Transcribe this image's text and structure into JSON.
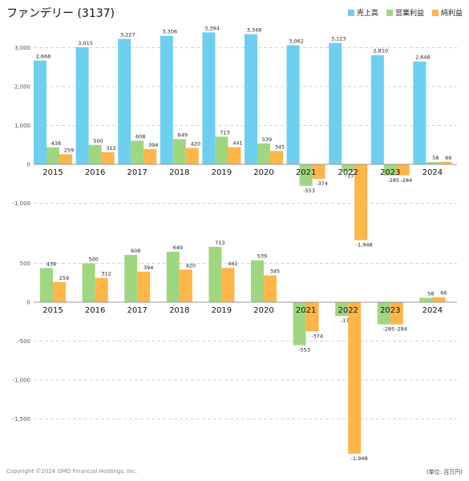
{
  "title": "ファンデリー (3137)",
  "legend": [
    {
      "name": "売上高",
      "color": "#6dcff0"
    },
    {
      "name": "営業利益",
      "color": "#9fd680"
    },
    {
      "name": "純利益",
      "color": "#ffb547"
    }
  ],
  "footer": {
    "copyright": "Copyright ©2024 GMO Financial Holdings, Inc.",
    "unit": "(単位: 百万円)"
  },
  "chart_data": [
    {
      "type": "bar",
      "categories": [
        "2015",
        "2016",
        "2017",
        "2018",
        "2019",
        "2020",
        "2021",
        "2022",
        "2023",
        "2024"
      ],
      "series": [
        {
          "name": "売上高",
          "color": "#6dcff0",
          "values": [
            2668,
            3015,
            3227,
            3306,
            3394,
            3348,
            3062,
            3123,
            2810,
            2646
          ],
          "labels": [
            "2,668",
            "3,015",
            "3,227",
            "3,306",
            "3,394",
            "3,348",
            "3,062",
            "3,123",
            "2,810",
            "2,646"
          ]
        },
        {
          "name": "営業利益",
          "color": "#9fd680",
          "values": [
            438,
            500,
            608,
            649,
            713,
            539,
            -553,
            -177,
            -285,
            58
          ],
          "labels": [
            "438",
            "500",
            "608",
            "649",
            "713",
            "539",
            "-553",
            "-177",
            "-285",
            "58"
          ]
        },
        {
          "name": "純利益",
          "color": "#ffb547",
          "values": [
            259,
            312,
            394,
            420,
            441,
            345,
            -374,
            -1948,
            -284,
            66
          ],
          "labels": [
            "259",
            "312",
            "394",
            "420",
            "441",
            "345",
            "-374",
            "-1,948",
            "-284",
            "66"
          ]
        }
      ],
      "ylim": [
        -2000,
        3500
      ],
      "yticks": [
        -1000,
        0,
        1000,
        2000,
        3000
      ],
      "ytick_labels": [
        "-1,000",
        "0",
        "1,000",
        "2,000",
        "3,000"
      ],
      "grid": true
    },
    {
      "type": "bar",
      "categories": [
        "2015",
        "2016",
        "2017",
        "2018",
        "2019",
        "2020",
        "2021",
        "2022",
        "2023",
        "2024"
      ],
      "series": [
        {
          "name": "営業利益",
          "color": "#9fd680",
          "values": [
            438,
            500,
            608,
            649,
            713,
            539,
            -553,
            -177,
            -285,
            58
          ],
          "labels": [
            "438",
            "500",
            "608",
            "649",
            "713",
            "539",
            "-553",
            "-177",
            "-285",
            "58"
          ]
        },
        {
          "name": "純利益",
          "color": "#ffb547",
          "values": [
            259,
            312,
            394,
            420,
            441,
            345,
            -374,
            -1948,
            -284,
            66
          ],
          "labels": [
            "259",
            "312",
            "394",
            "420",
            "441",
            "345",
            "-374",
            "-1,948",
            "-284",
            "66"
          ]
        }
      ],
      "ylim": [
        -2000,
        800
      ],
      "yticks": [
        -1500,
        -1000,
        -500,
        0,
        500
      ],
      "ytick_labels": [
        "-1,500",
        "-1,000",
        "-500",
        "0",
        "500"
      ],
      "grid": true
    }
  ]
}
